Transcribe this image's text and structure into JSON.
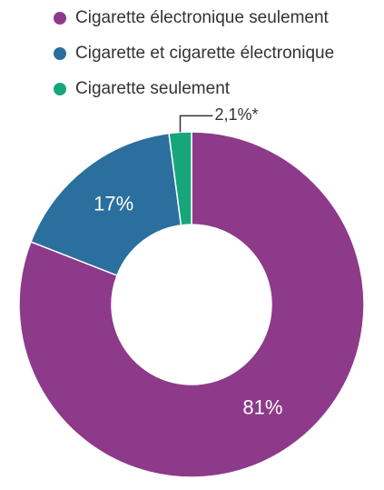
{
  "chart_data": {
    "type": "donut",
    "categories": [
      "Cigarette électronique seulement",
      "Cigarette et cigarette électronique",
      "Cigarette seulement"
    ],
    "values": [
      81,
      17,
      2.1
    ],
    "value_labels": [
      "81%",
      "17%",
      "2,1%*"
    ],
    "colors": [
      "#8e3a8a",
      "#2a6f9e",
      "#17a67a"
    ]
  }
}
